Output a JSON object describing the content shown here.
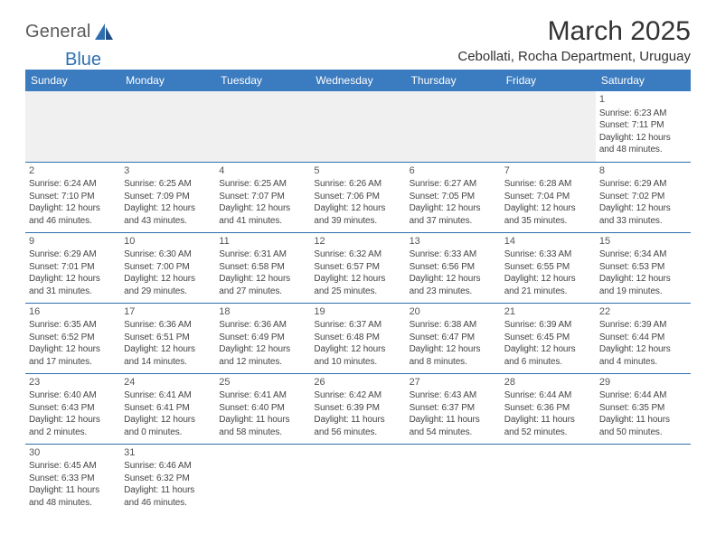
{
  "brand": {
    "part1": "General",
    "part2": "Blue"
  },
  "title": "March 2025",
  "location": "Cebollati, Rocha Department, Uruguay",
  "dow": [
    "Sunday",
    "Monday",
    "Tuesday",
    "Wednesday",
    "Thursday",
    "Friday",
    "Saturday"
  ],
  "colors": {
    "header_bg": "#3b7bbf",
    "header_fg": "#ffffff",
    "rule": "#2f6fae",
    "blank_bg": "#f0f0f0",
    "logo_gray": "#5a5a5a",
    "logo_blue": "#2f6fae"
  },
  "type": "calendar-table",
  "columns": 7,
  "weeks": [
    [
      null,
      null,
      null,
      null,
      null,
      null,
      {
        "n": "1",
        "sr": "Sunrise: 6:23 AM",
        "ss": "Sunset: 7:11 PM",
        "d1": "Daylight: 12 hours",
        "d2": "and 48 minutes."
      }
    ],
    [
      {
        "n": "2",
        "sr": "Sunrise: 6:24 AM",
        "ss": "Sunset: 7:10 PM",
        "d1": "Daylight: 12 hours",
        "d2": "and 46 minutes."
      },
      {
        "n": "3",
        "sr": "Sunrise: 6:25 AM",
        "ss": "Sunset: 7:09 PM",
        "d1": "Daylight: 12 hours",
        "d2": "and 43 minutes."
      },
      {
        "n": "4",
        "sr": "Sunrise: 6:25 AM",
        "ss": "Sunset: 7:07 PM",
        "d1": "Daylight: 12 hours",
        "d2": "and 41 minutes."
      },
      {
        "n": "5",
        "sr": "Sunrise: 6:26 AM",
        "ss": "Sunset: 7:06 PM",
        "d1": "Daylight: 12 hours",
        "d2": "and 39 minutes."
      },
      {
        "n": "6",
        "sr": "Sunrise: 6:27 AM",
        "ss": "Sunset: 7:05 PM",
        "d1": "Daylight: 12 hours",
        "d2": "and 37 minutes."
      },
      {
        "n": "7",
        "sr": "Sunrise: 6:28 AM",
        "ss": "Sunset: 7:04 PM",
        "d1": "Daylight: 12 hours",
        "d2": "and 35 minutes."
      },
      {
        "n": "8",
        "sr": "Sunrise: 6:29 AM",
        "ss": "Sunset: 7:02 PM",
        "d1": "Daylight: 12 hours",
        "d2": "and 33 minutes."
      }
    ],
    [
      {
        "n": "9",
        "sr": "Sunrise: 6:29 AM",
        "ss": "Sunset: 7:01 PM",
        "d1": "Daylight: 12 hours",
        "d2": "and 31 minutes."
      },
      {
        "n": "10",
        "sr": "Sunrise: 6:30 AM",
        "ss": "Sunset: 7:00 PM",
        "d1": "Daylight: 12 hours",
        "d2": "and 29 minutes."
      },
      {
        "n": "11",
        "sr": "Sunrise: 6:31 AM",
        "ss": "Sunset: 6:58 PM",
        "d1": "Daylight: 12 hours",
        "d2": "and 27 minutes."
      },
      {
        "n": "12",
        "sr": "Sunrise: 6:32 AM",
        "ss": "Sunset: 6:57 PM",
        "d1": "Daylight: 12 hours",
        "d2": "and 25 minutes."
      },
      {
        "n": "13",
        "sr": "Sunrise: 6:33 AM",
        "ss": "Sunset: 6:56 PM",
        "d1": "Daylight: 12 hours",
        "d2": "and 23 minutes."
      },
      {
        "n": "14",
        "sr": "Sunrise: 6:33 AM",
        "ss": "Sunset: 6:55 PM",
        "d1": "Daylight: 12 hours",
        "d2": "and 21 minutes."
      },
      {
        "n": "15",
        "sr": "Sunrise: 6:34 AM",
        "ss": "Sunset: 6:53 PM",
        "d1": "Daylight: 12 hours",
        "d2": "and 19 minutes."
      }
    ],
    [
      {
        "n": "16",
        "sr": "Sunrise: 6:35 AM",
        "ss": "Sunset: 6:52 PM",
        "d1": "Daylight: 12 hours",
        "d2": "and 17 minutes."
      },
      {
        "n": "17",
        "sr": "Sunrise: 6:36 AM",
        "ss": "Sunset: 6:51 PM",
        "d1": "Daylight: 12 hours",
        "d2": "and 14 minutes."
      },
      {
        "n": "18",
        "sr": "Sunrise: 6:36 AM",
        "ss": "Sunset: 6:49 PM",
        "d1": "Daylight: 12 hours",
        "d2": "and 12 minutes."
      },
      {
        "n": "19",
        "sr": "Sunrise: 6:37 AM",
        "ss": "Sunset: 6:48 PM",
        "d1": "Daylight: 12 hours",
        "d2": "and 10 minutes."
      },
      {
        "n": "20",
        "sr": "Sunrise: 6:38 AM",
        "ss": "Sunset: 6:47 PM",
        "d1": "Daylight: 12 hours",
        "d2": "and 8 minutes."
      },
      {
        "n": "21",
        "sr": "Sunrise: 6:39 AM",
        "ss": "Sunset: 6:45 PM",
        "d1": "Daylight: 12 hours",
        "d2": "and 6 minutes."
      },
      {
        "n": "22",
        "sr": "Sunrise: 6:39 AM",
        "ss": "Sunset: 6:44 PM",
        "d1": "Daylight: 12 hours",
        "d2": "and 4 minutes."
      }
    ],
    [
      {
        "n": "23",
        "sr": "Sunrise: 6:40 AM",
        "ss": "Sunset: 6:43 PM",
        "d1": "Daylight: 12 hours",
        "d2": "and 2 minutes."
      },
      {
        "n": "24",
        "sr": "Sunrise: 6:41 AM",
        "ss": "Sunset: 6:41 PM",
        "d1": "Daylight: 12 hours",
        "d2": "and 0 minutes."
      },
      {
        "n": "25",
        "sr": "Sunrise: 6:41 AM",
        "ss": "Sunset: 6:40 PM",
        "d1": "Daylight: 11 hours",
        "d2": "and 58 minutes."
      },
      {
        "n": "26",
        "sr": "Sunrise: 6:42 AM",
        "ss": "Sunset: 6:39 PM",
        "d1": "Daylight: 11 hours",
        "d2": "and 56 minutes."
      },
      {
        "n": "27",
        "sr": "Sunrise: 6:43 AM",
        "ss": "Sunset: 6:37 PM",
        "d1": "Daylight: 11 hours",
        "d2": "and 54 minutes."
      },
      {
        "n": "28",
        "sr": "Sunrise: 6:44 AM",
        "ss": "Sunset: 6:36 PM",
        "d1": "Daylight: 11 hours",
        "d2": "and 52 minutes."
      },
      {
        "n": "29",
        "sr": "Sunrise: 6:44 AM",
        "ss": "Sunset: 6:35 PM",
        "d1": "Daylight: 11 hours",
        "d2": "and 50 minutes."
      }
    ],
    [
      {
        "n": "30",
        "sr": "Sunrise: 6:45 AM",
        "ss": "Sunset: 6:33 PM",
        "d1": "Daylight: 11 hours",
        "d2": "and 48 minutes."
      },
      {
        "n": "31",
        "sr": "Sunrise: 6:46 AM",
        "ss": "Sunset: 6:32 PM",
        "d1": "Daylight: 11 hours",
        "d2": "and 46 minutes."
      },
      null,
      null,
      null,
      null,
      null
    ]
  ]
}
